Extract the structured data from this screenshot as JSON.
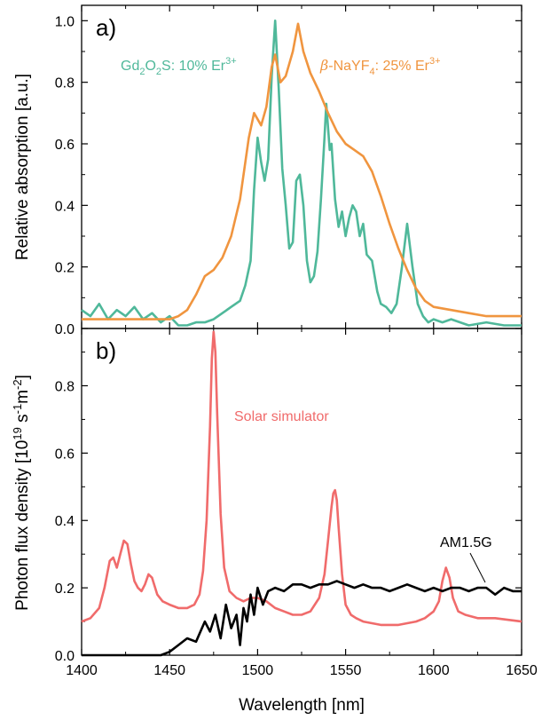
{
  "figure": {
    "xlabel": "Wavelength [nm]",
    "x_ticks": [
      "1400",
      "1450",
      "1500",
      "1550",
      "1600",
      "1650"
    ]
  },
  "chart_data": [
    {
      "type": "line",
      "panel_label": "a)",
      "xlabel": "Wavelength [nm]",
      "ylabel": "Relative absorption [a.u.]",
      "xlim": [
        1400,
        1650
      ],
      "ylim": [
        0,
        1.05
      ],
      "y_ticks": [
        "0.0",
        "0.2",
        "0.4",
        "0.6",
        "0.8",
        "1.0"
      ],
      "series": [
        {
          "name": "Gd2O2S: 10% Er3+",
          "color": "#4fb89a",
          "x": [
            1400,
            1405,
            1410,
            1415,
            1420,
            1425,
            1430,
            1435,
            1440,
            1445,
            1450,
            1455,
            1460,
            1465,
            1470,
            1475,
            1480,
            1485,
            1490,
            1493,
            1496,
            1498,
            1500,
            1502,
            1504,
            1506,
            1508,
            1510,
            1512,
            1514,
            1516,
            1518,
            1520,
            1522,
            1524,
            1526,
            1528,
            1530,
            1532,
            1534,
            1536,
            1538,
            1539,
            1541,
            1542,
            1544,
            1546,
            1548,
            1550,
            1552,
            1554,
            1556,
            1558,
            1560,
            1562,
            1565,
            1568,
            1570,
            1573,
            1576,
            1579,
            1582,
            1585,
            1588,
            1591,
            1594,
            1597,
            1600,
            1605,
            1610,
            1620,
            1630,
            1640,
            1650
          ],
          "y": [
            0.06,
            0.04,
            0.08,
            0.03,
            0.06,
            0.04,
            0.07,
            0.03,
            0.05,
            0.02,
            0.04,
            0.01,
            0.01,
            0.02,
            0.02,
            0.03,
            0.05,
            0.07,
            0.09,
            0.14,
            0.22,
            0.45,
            0.62,
            0.54,
            0.48,
            0.55,
            0.82,
            1.0,
            0.78,
            0.52,
            0.4,
            0.26,
            0.28,
            0.48,
            0.5,
            0.4,
            0.22,
            0.15,
            0.17,
            0.25,
            0.42,
            0.62,
            0.73,
            0.58,
            0.6,
            0.42,
            0.33,
            0.38,
            0.3,
            0.36,
            0.4,
            0.38,
            0.3,
            0.34,
            0.24,
            0.22,
            0.12,
            0.08,
            0.07,
            0.05,
            0.08,
            0.2,
            0.34,
            0.2,
            0.08,
            0.04,
            0.02,
            0.03,
            0.02,
            0.03,
            0.01,
            0.02,
            0.01,
            0.01
          ]
        },
        {
          "name": "β-NaYF4: 25% Er3+",
          "color": "#f0953f",
          "x": [
            1400,
            1410,
            1420,
            1430,
            1440,
            1450,
            1455,
            1460,
            1465,
            1470,
            1475,
            1480,
            1485,
            1490,
            1495,
            1498,
            1502,
            1505,
            1508,
            1510,
            1513,
            1516,
            1520,
            1523,
            1526,
            1530,
            1535,
            1540,
            1545,
            1550,
            1555,
            1560,
            1565,
            1570,
            1575,
            1580,
            1585,
            1590,
            1595,
            1600,
            1610,
            1620,
            1630,
            1640,
            1650
          ],
          "y": [
            0.03,
            0.03,
            0.03,
            0.03,
            0.03,
            0.03,
            0.04,
            0.06,
            0.11,
            0.17,
            0.19,
            0.23,
            0.3,
            0.42,
            0.62,
            0.7,
            0.66,
            0.72,
            0.85,
            0.89,
            0.8,
            0.82,
            0.9,
            0.99,
            0.9,
            0.83,
            0.77,
            0.7,
            0.64,
            0.6,
            0.58,
            0.56,
            0.51,
            0.43,
            0.34,
            0.26,
            0.19,
            0.13,
            0.09,
            0.07,
            0.06,
            0.05,
            0.04,
            0.04,
            0.04
          ]
        }
      ],
      "legend": {
        "gd_prefix": "Gd",
        "gd_sub1": "2",
        "gd_mid": "O",
        "gd_sub2": "2",
        "gd_suffix": "S: 10% Er",
        "gd_sup": "3+",
        "nay_beta": "β",
        "nay_prefix": "-NaYF",
        "nay_sub": "4",
        "nay_suffix": ": 25% Er",
        "nay_sup": "3+"
      }
    },
    {
      "type": "line",
      "panel_label": "b)",
      "xlabel": "Wavelength [nm]",
      "ylabel_main": "Photon flux density [10",
      "ylabel_sup1": "19",
      "ylabel_mid": " s",
      "ylabel_sup2": "-1",
      "ylabel_mid2": "m",
      "ylabel_sup3": "-2",
      "ylabel_end": "]",
      "xlim": [
        1400,
        1650
      ],
      "ylim": [
        0,
        0.97
      ],
      "y_ticks": [
        "0.0",
        "0.2",
        "0.4",
        "0.6",
        "0.8"
      ],
      "series": [
        {
          "name": "Solar simulator",
          "color": "#f06b6b",
          "x": [
            1400,
            1405,
            1410,
            1413,
            1416,
            1418,
            1420,
            1422,
            1424,
            1426,
            1428,
            1430,
            1432,
            1434,
            1436,
            1438,
            1440,
            1443,
            1446,
            1450,
            1455,
            1460,
            1464,
            1467,
            1469,
            1471,
            1473,
            1474,
            1475,
            1476,
            1477,
            1479,
            1481,
            1484,
            1488,
            1492,
            1496,
            1500,
            1505,
            1510,
            1515,
            1520,
            1525,
            1530,
            1535,
            1538,
            1540,
            1542,
            1543,
            1544,
            1545,
            1546,
            1548,
            1550,
            1553,
            1556,
            1560,
            1570,
            1580,
            1590,
            1595,
            1600,
            1603,
            1605,
            1607,
            1609,
            1611,
            1614,
            1618,
            1625,
            1635,
            1650
          ],
          "y": [
            0.1,
            0.11,
            0.14,
            0.2,
            0.28,
            0.29,
            0.26,
            0.3,
            0.34,
            0.33,
            0.27,
            0.22,
            0.2,
            0.19,
            0.21,
            0.24,
            0.23,
            0.18,
            0.16,
            0.15,
            0.14,
            0.14,
            0.15,
            0.18,
            0.25,
            0.4,
            0.68,
            0.88,
            0.96,
            0.9,
            0.72,
            0.42,
            0.26,
            0.19,
            0.17,
            0.16,
            0.17,
            0.17,
            0.16,
            0.14,
            0.13,
            0.12,
            0.12,
            0.13,
            0.17,
            0.24,
            0.34,
            0.44,
            0.48,
            0.49,
            0.46,
            0.38,
            0.24,
            0.15,
            0.12,
            0.11,
            0.1,
            0.09,
            0.09,
            0.1,
            0.11,
            0.13,
            0.16,
            0.22,
            0.26,
            0.23,
            0.17,
            0.13,
            0.12,
            0.11,
            0.11,
            0.1
          ]
        },
        {
          "name": "AM1.5G",
          "color": "#000000",
          "x": [
            1400,
            1410,
            1420,
            1430,
            1440,
            1445,
            1450,
            1455,
            1460,
            1465,
            1470,
            1473,
            1476,
            1479,
            1482,
            1485,
            1488,
            1490,
            1492,
            1494,
            1496,
            1498,
            1500,
            1503,
            1506,
            1510,
            1515,
            1520,
            1525,
            1530,
            1535,
            1540,
            1545,
            1550,
            1555,
            1560,
            1565,
            1570,
            1575,
            1580,
            1585,
            1590,
            1595,
            1600,
            1605,
            1610,
            1615,
            1620,
            1625,
            1630,
            1635,
            1640,
            1645,
            1650
          ],
          "y": [
            0.0,
            0.0,
            0.0,
            0.0,
            0.0,
            0.0,
            0.01,
            0.03,
            0.05,
            0.04,
            0.1,
            0.07,
            0.12,
            0.05,
            0.15,
            0.08,
            0.12,
            0.03,
            0.14,
            0.1,
            0.18,
            0.12,
            0.2,
            0.15,
            0.19,
            0.2,
            0.19,
            0.21,
            0.21,
            0.2,
            0.21,
            0.21,
            0.22,
            0.21,
            0.2,
            0.21,
            0.2,
            0.2,
            0.19,
            0.2,
            0.21,
            0.2,
            0.19,
            0.2,
            0.19,
            0.2,
            0.2,
            0.19,
            0.2,
            0.2,
            0.18,
            0.2,
            0.19,
            0.19
          ]
        }
      ],
      "annotations": {
        "solar_label": "Solar simulator",
        "am_label": "AM1.5G"
      }
    }
  ]
}
